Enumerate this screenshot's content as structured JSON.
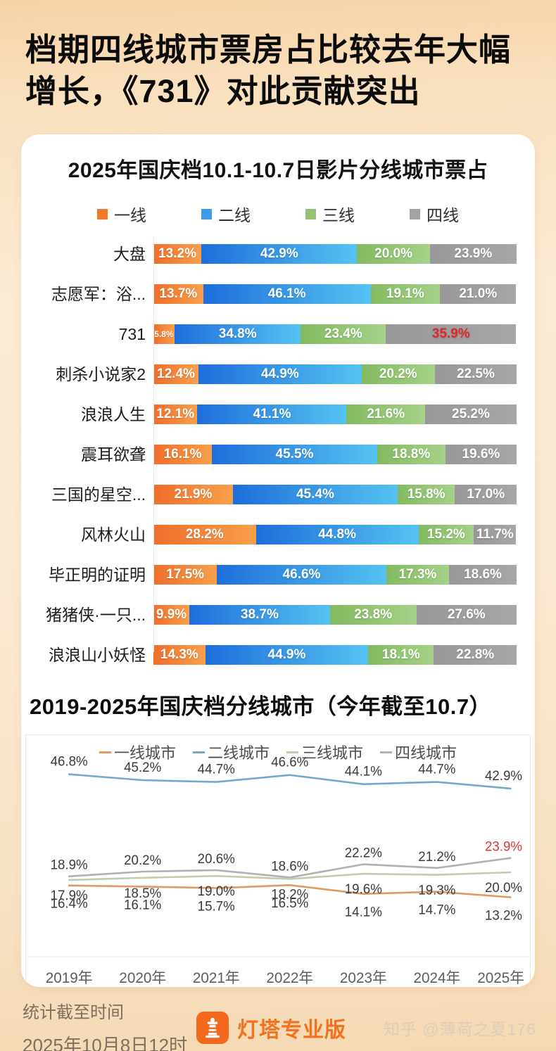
{
  "page": {
    "main_title": "档期四线城市票房占比较去年大幅增长，《731》对此贡献突出",
    "footer": {
      "stats_label": "统计截至时间",
      "stats_time": "2025年10月8日12时",
      "brand": "灯塔专业版",
      "watermark": "知乎 @薄荷之夏176"
    }
  },
  "chart_data": [
    {
      "type": "bar",
      "subtype": "horizontal-stacked-100pct",
      "title": "2025年国庆档10.1-10.7日影片分线城市票占",
      "unit": "%",
      "legend_position": "top",
      "legend": [
        {
          "name": "一线",
          "swatch": "#F0792E",
          "color_start": "#EF6E2B",
          "color_end": "#F9A04C"
        },
        {
          "name": "二线",
          "swatch": "#3B9CEC",
          "color_start": "#1E6EDB",
          "color_end": "#55C3F1"
        },
        {
          "name": "三线",
          "swatch": "#94C470",
          "color_start": "#83BA60",
          "color_end": "#A6D189"
        },
        {
          "name": "四线",
          "swatch": "#A3A3A3",
          "color_start": "#989898",
          "color_end": "#A7A7A7"
        }
      ],
      "highlight_text_color": "#E0262B",
      "rows": [
        {
          "label": "大盘",
          "values": [
            13.2,
            42.9,
            20.0,
            23.9
          ]
        },
        {
          "label": "志愿军：浴...",
          "values": [
            13.7,
            46.1,
            19.1,
            21.0
          ]
        },
        {
          "label": "731",
          "values": [
            5.8,
            34.8,
            23.4,
            35.9
          ],
          "highlight_index": 3
        },
        {
          "label": "刺杀小说家2",
          "values": [
            12.4,
            44.9,
            20.2,
            22.5
          ]
        },
        {
          "label": "浪浪人生",
          "values": [
            12.1,
            41.1,
            21.6,
            25.2
          ]
        },
        {
          "label": "震耳欲聋",
          "values": [
            16.1,
            45.5,
            18.8,
            19.6
          ]
        },
        {
          "label": "三国的星空...",
          "values": [
            21.9,
            45.4,
            15.8,
            17.0
          ]
        },
        {
          "label": "风林火山",
          "values": [
            28.2,
            44.8,
            15.2,
            11.7
          ]
        },
        {
          "label": "毕正明的证明",
          "values": [
            17.5,
            46.6,
            17.3,
            18.6
          ]
        },
        {
          "label": "猪猪侠·一只...",
          "values": [
            9.9,
            38.7,
            23.8,
            27.6
          ]
        },
        {
          "label": "浪浪山小妖怪",
          "values": [
            14.3,
            44.9,
            18.1,
            22.8
          ]
        }
      ]
    },
    {
      "type": "line",
      "title": "2019-2025年国庆档分线城市（今年截至10.7）",
      "unit": "%",
      "x": [
        "2019年",
        "2020年",
        "2021年",
        "2022年",
        "2023年",
        "2024年",
        "2025年"
      ],
      "legend_order": [
        "一线城市",
        "二线城市",
        "三线城市",
        "四线城市"
      ],
      "legend_position": "top",
      "grid": false,
      "ylim": [
        10,
        50
      ],
      "highlight_color": "#D93A36",
      "series": [
        {
          "name": "二线城市",
          "color": "#74A9CD",
          "values": [
            46.8,
            45.2,
            44.7,
            46.6,
            44.1,
            44.7,
            42.9
          ]
        },
        {
          "name": "四线城市",
          "color": "#B1B1AF",
          "values": [
            18.9,
            20.2,
            20.6,
            18.6,
            22.2,
            21.2,
            23.9
          ],
          "highlight_last": true
        },
        {
          "name": "三线城市",
          "color": "#BECDAF",
          "values": [
            17.9,
            18.5,
            19.0,
            18.2,
            19.6,
            19.3,
            20.0
          ]
        },
        {
          "name": "一线城市",
          "color": "#DF9A62",
          "values": [
            16.4,
            16.1,
            15.7,
            16.5,
            14.1,
            14.7,
            13.2
          ]
        }
      ]
    }
  ]
}
